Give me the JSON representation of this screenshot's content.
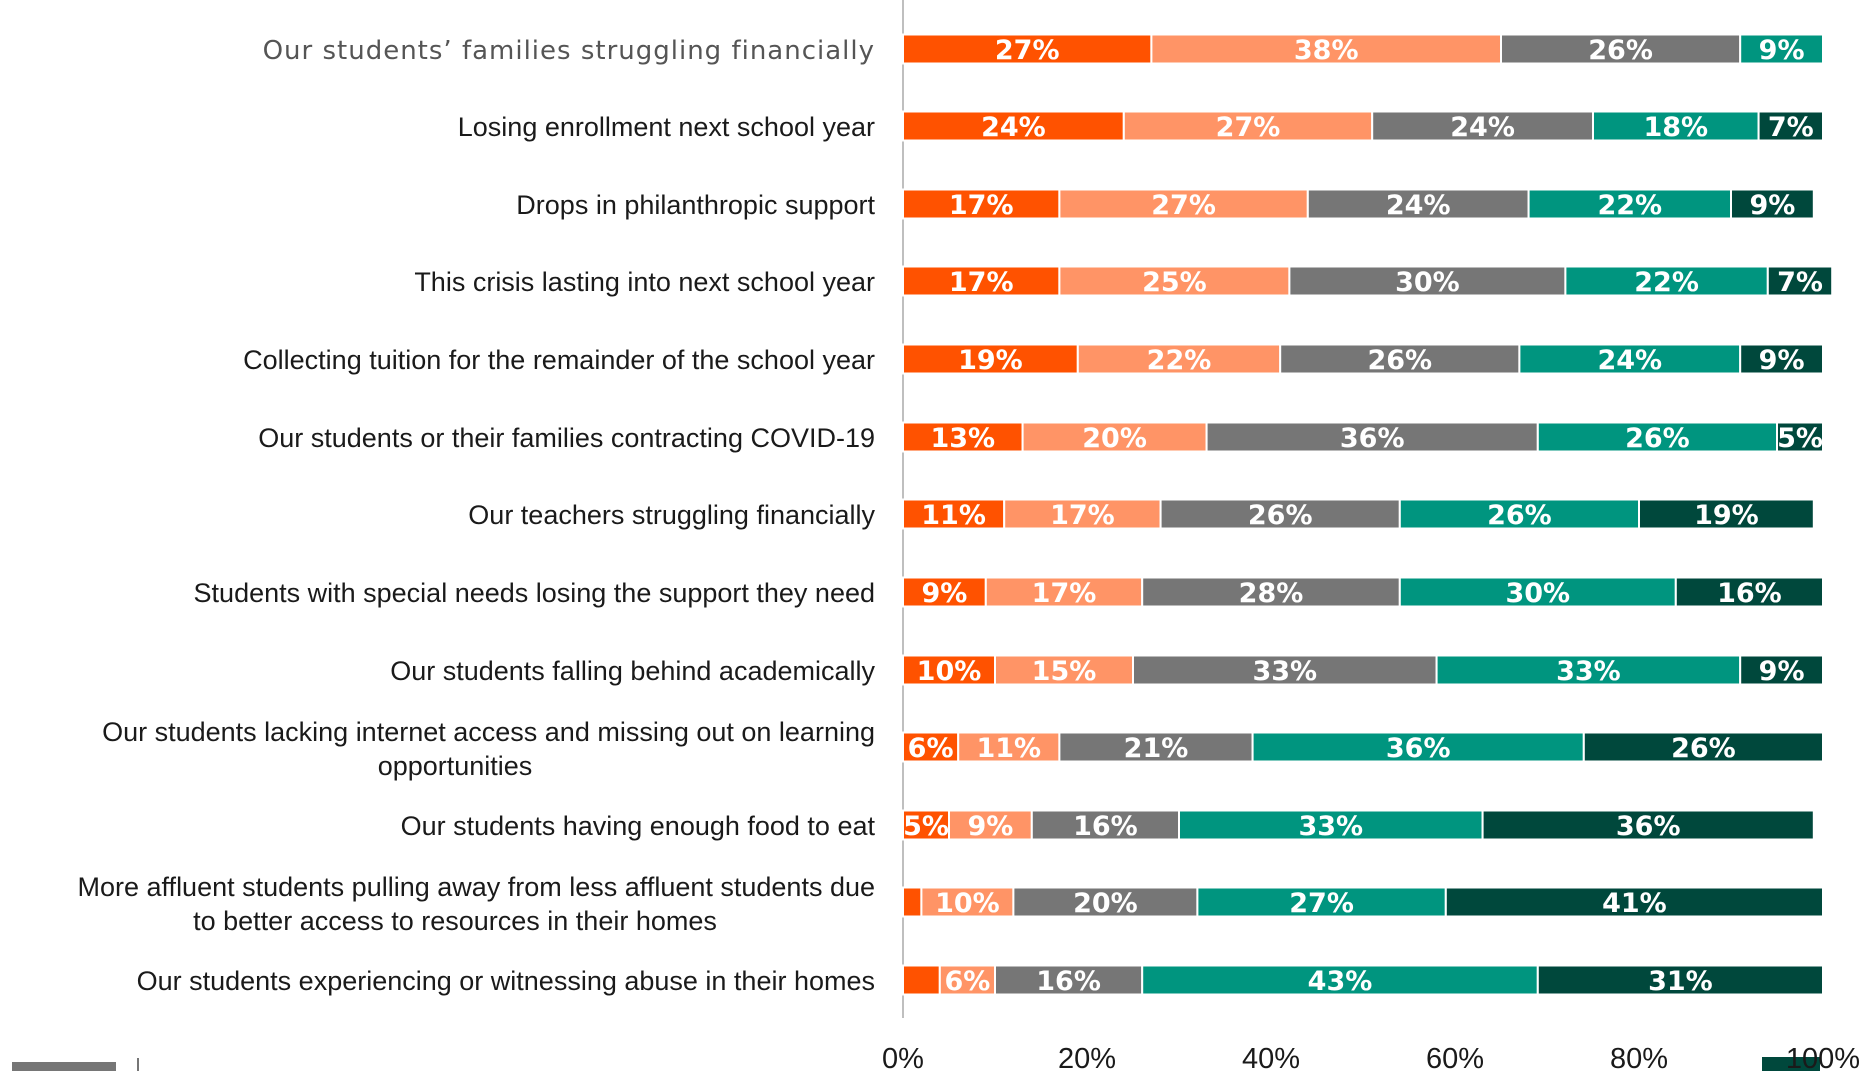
{
  "chart_data": {
    "type": "bar",
    "orientation": "horizontal-stacked",
    "categories": [
      "Our students’ families struggling financially",
      "Losing enrollment next school year",
      "Drops in philanthropic support",
      "This crisis lasting into next school year",
      "Collecting tuition for the remainder of the school year",
      "Our students or their families contracting COVID-19",
      "Our teachers struggling financially",
      "Students with special needs losing the support they need",
      "Our students falling behind academically",
      "Our students lacking internet access and missing out on learning opportunities",
      "Our students having enough food to eat",
      "More affluent students pulling away from less affluent students due to better access to resources in their homes",
      "Our students experiencing or witnessing abuse in their homes"
    ],
    "series": [
      {
        "color": "#ff5200",
        "values": [
          27,
          24,
          17,
          17,
          19,
          13,
          11,
          9,
          10,
          6,
          5,
          2,
          4
        ]
      },
      {
        "color": "#ff9466",
        "values": [
          38,
          27,
          27,
          25,
          22,
          20,
          17,
          17,
          15,
          11,
          9,
          10,
          6
        ]
      },
      {
        "color": "#767676",
        "values": [
          26,
          24,
          24,
          30,
          26,
          36,
          26,
          28,
          33,
          21,
          16,
          20,
          16
        ]
      },
      {
        "color": "#00957f",
        "values": [
          9,
          18,
          22,
          22,
          24,
          26,
          26,
          30,
          33,
          36,
          33,
          27,
          43
        ]
      },
      {
        "color": "#00483c",
        "values": [
          0,
          7,
          9,
          7,
          9,
          5,
          19,
          16,
          9,
          26,
          36,
          41,
          31
        ]
      }
    ],
    "data_labels": [
      [
        "27%",
        "38%",
        "26%",
        "9%",
        ""
      ],
      [
        "24%",
        "27%",
        "24%",
        "18%",
        "7%"
      ],
      [
        "17%",
        "27%",
        "24%",
        "22%",
        "9%"
      ],
      [
        "17%",
        "25%",
        "30%",
        "22%",
        "7%"
      ],
      [
        "19%",
        "22%",
        "26%",
        "24%",
        "9%"
      ],
      [
        "13%",
        "20%",
        "36%",
        "26%",
        "5%"
      ],
      [
        "11%",
        "17%",
        "26%",
        "26%",
        "19%"
      ],
      [
        "9%",
        "17%",
        "28%",
        "30%",
        "16%"
      ],
      [
        "10%",
        "15%",
        "33%",
        "33%",
        "9%"
      ],
      [
        "6%",
        "11%",
        "21%",
        "36%",
        "26%"
      ],
      [
        "5%",
        "9%",
        "16%",
        "33%",
        "36%"
      ],
      [
        "",
        "10%",
        "20%",
        "27%",
        "41%"
      ],
      [
        "",
        "6%",
        "16%",
        "43%",
        "31%"
      ]
    ],
    "x_ticks": [
      "0%",
      "20%",
      "40%",
      "60%",
      "80%",
      "100%"
    ],
    "xlim": [
      0,
      100
    ],
    "grid": false,
    "legend": "bottom",
    "legend_colors": [
      "#767676",
      "#00483c"
    ]
  }
}
